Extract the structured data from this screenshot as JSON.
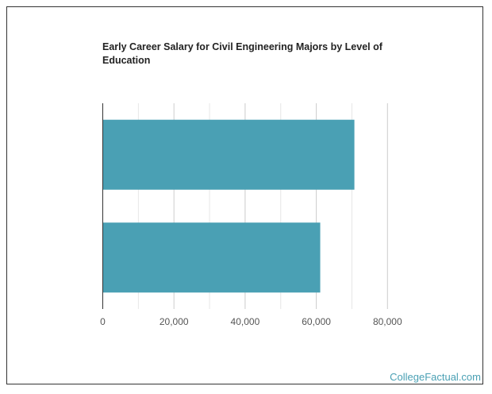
{
  "chart_data": {
    "type": "bar",
    "orientation": "horizontal",
    "title": "Early Career Salary for Civil Engineering Majors by Level of Education",
    "categories": [
      "",
      ""
    ],
    "values": [
      70700,
      61100
    ],
    "xlim": [
      0,
      80000
    ],
    "xticks": [
      0,
      20000,
      40000,
      60000,
      80000
    ],
    "xtick_labels": [
      "0",
      "20,000",
      "40,000",
      "60,000",
      "80,000"
    ],
    "grid": true,
    "bar_color": "#4aa0b4"
  },
  "branding": "CollegeFactual.com"
}
